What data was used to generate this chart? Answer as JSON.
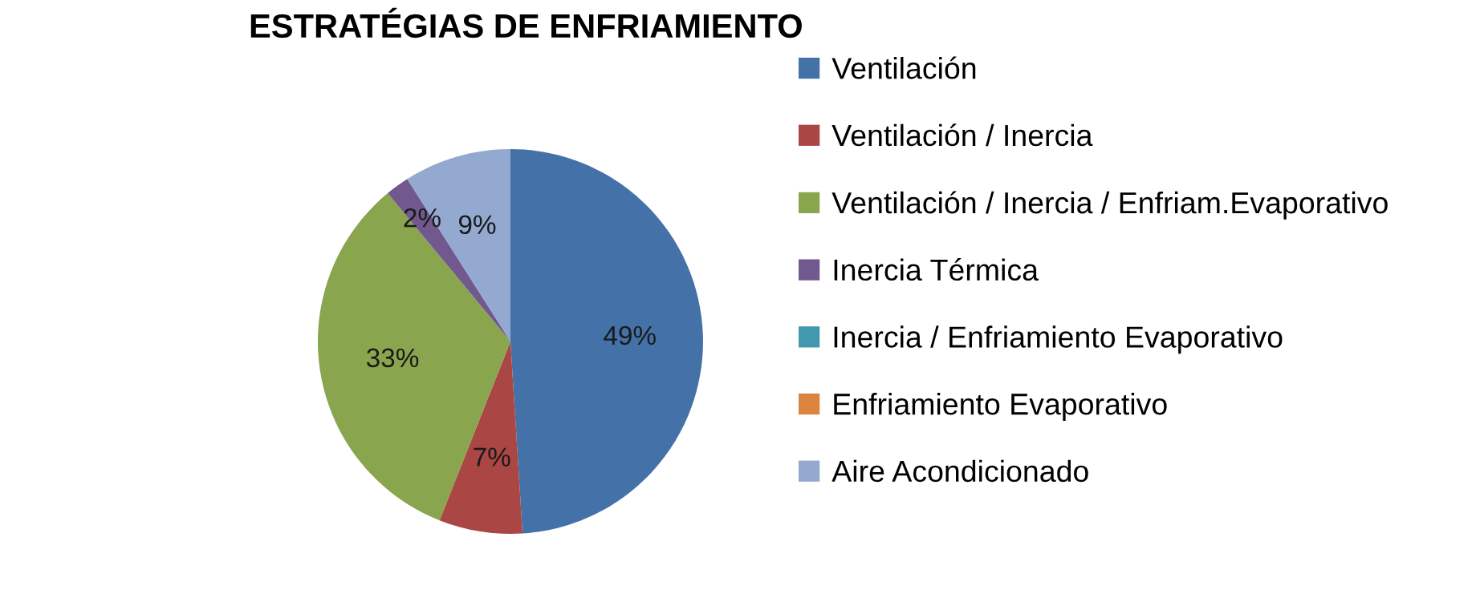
{
  "chart_data": {
    "type": "pie",
    "title": "ESTRATÉGIAS DE ENFRIAMIENTO",
    "categories": [
      "Ventilación",
      "Ventilación / Inercia",
      "Ventilación / Inercia / Enfriam.Evaporativo",
      "Inercia Térmica",
      "Inercia / Enfriamiento Evaporativo",
      "Enfriamiento Evaporativo",
      "Aire Acondicionado"
    ],
    "values": [
      49,
      7,
      33,
      2,
      0,
      0,
      9
    ],
    "colors": [
      "#4472a8",
      "#aa4643",
      "#89a54e",
      "#71588f",
      "#4198af",
      "#db843d",
      "#93a9cf"
    ],
    "value_labels": [
      "49%",
      "7%",
      "33%",
      "2%",
      null,
      null,
      "9%"
    ],
    "legend": "right"
  }
}
